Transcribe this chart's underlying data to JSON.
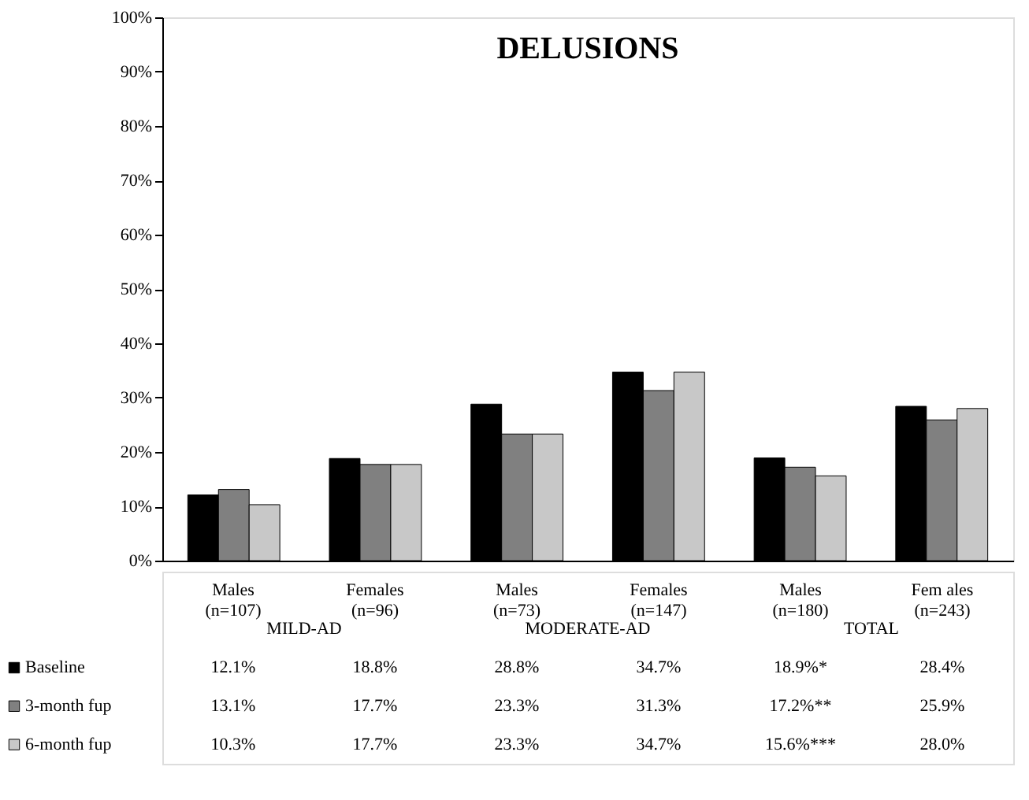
{
  "chart_data": {
    "type": "bar",
    "title": "DELUSIONS",
    "categories": [
      "Males\n(n=107)",
      "Females\n(n=96)",
      "Males\n(n=73)",
      "Females\n(n=147)",
      "Males\n(n=180)",
      "Fem ales\n(n=243)"
    ],
    "annotations": [
      "MILD-AD",
      "MODERATE-AD",
      "TOTAL"
    ],
    "series": [
      {
        "name": "Baseline",
        "color": "#000000",
        "values": [
          12.1,
          18.8,
          28.8,
          34.7,
          18.9,
          28.4
        ],
        "value_labels": [
          "12.1%",
          "18.8%",
          "28.8%",
          "34.7%",
          "18.9%*",
          "28.4%"
        ]
      },
      {
        "name": "3-month fup",
        "color": "#808080",
        "values": [
          13.1,
          17.7,
          23.3,
          31.3,
          17.2,
          25.9
        ],
        "value_labels": [
          "13.1%",
          "17.7%",
          "23.3%",
          "31.3%",
          "17.2%**",
          "25.9%"
        ]
      },
      {
        "name": "6-month fup",
        "color": "#c8c8c8",
        "values": [
          10.3,
          17.7,
          23.3,
          34.7,
          15.6,
          28.0
        ],
        "value_labels": [
          "10.3%",
          "17.7%",
          "23.3%",
          "34.7%",
          "15.6%***",
          "28.0%"
        ]
      }
    ],
    "ylim": [
      0,
      100
    ],
    "yticks": [
      {
        "value": 0,
        "label": "0%"
      },
      {
        "value": 10,
        "label": "10%"
      },
      {
        "value": 20,
        "label": "20%"
      },
      {
        "value": 30,
        "label": "30%"
      },
      {
        "value": 40,
        "label": "40%"
      },
      {
        "value": 50,
        "label": "50%"
      },
      {
        "value": 60,
        "label": "60%"
      },
      {
        "value": 70,
        "label": "70%"
      },
      {
        "value": 80,
        "label": "80%"
      },
      {
        "value": 90,
        "label": "90%"
      },
      {
        "value": 100,
        "label": "100%"
      }
    ],
    "grid": false,
    "legend": "bottom"
  }
}
